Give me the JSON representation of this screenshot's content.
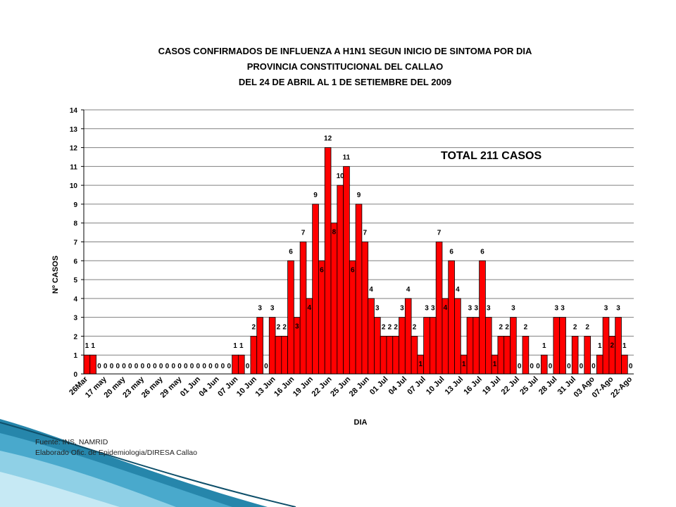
{
  "titles": {
    "line1": "CASOS CONFIRMADOS DE INFLUENZA A H1N1  SEGUN INICIO DE SINTOMA POR DIA",
    "line2": "PROVINCIA CONSTITUCIONAL DEL CALLAO",
    "line3": "DEL 24 DE ABRIL AL 1 DE SETIEMBRE DEL 2009"
  },
  "source": {
    "line1": "Fuente: INS, NAMRID",
    "line2": "Elaborado Ofic. de Epidemiologia/DIRESA Callao"
  },
  "colors": {
    "bar": "#ff0000",
    "bar_outline": "#000000",
    "grid": "#808080",
    "decor": "#1a7fa6"
  },
  "chart_data": {
    "type": "bar",
    "xlabel": "DIA",
    "ylabel": "Nº CASOS",
    "ylim": [
      0,
      14
    ],
    "yticks": [
      0,
      1,
      2,
      3,
      4,
      5,
      6,
      7,
      8,
      9,
      10,
      11,
      12,
      13,
      14
    ],
    "grid": true,
    "annotation": "TOTAL  211 CASOS",
    "tick_labels": [
      "26Mar",
      "17 may",
      "20 may",
      "23 may",
      "26 may",
      "29 may",
      "01 Jun",
      "04 Jun",
      "07 Jun",
      "10 Jun",
      "13 Jun",
      "16 Jun",
      "19 Jun",
      "22 Jun",
      "25 Jun",
      "28 Jun",
      "01 Jul",
      "04 Jul",
      "07 Jul",
      "10 Jul",
      "13 Jul",
      "16 Jul",
      "19 Jul",
      "22 Jul",
      "25 Jul",
      "28 Jul",
      "31 Jul",
      "03 Ago",
      "07-Ago",
      "22-Ago"
    ],
    "values": [
      1,
      1,
      0,
      0,
      0,
      0,
      0,
      0,
      0,
      0,
      0,
      0,
      0,
      0,
      0,
      0,
      0,
      0,
      0,
      0,
      0,
      0,
      0,
      0,
      1,
      1,
      0,
      2,
      3,
      0,
      3,
      2,
      2,
      6,
      3,
      7,
      4,
      9,
      6,
      12,
      8,
      10,
      11,
      6,
      9,
      7,
      4,
      3,
      2,
      2,
      2,
      3,
      4,
      2,
      1,
      3,
      3,
      7,
      4,
      6,
      4,
      1,
      3,
      3,
      6,
      3,
      1,
      2,
      2,
      3,
      0,
      2,
      0,
      0,
      1,
      0,
      3,
      3,
      0,
      2,
      0,
      2,
      0,
      1,
      3,
      2,
      3,
      1,
      0
    ]
  }
}
